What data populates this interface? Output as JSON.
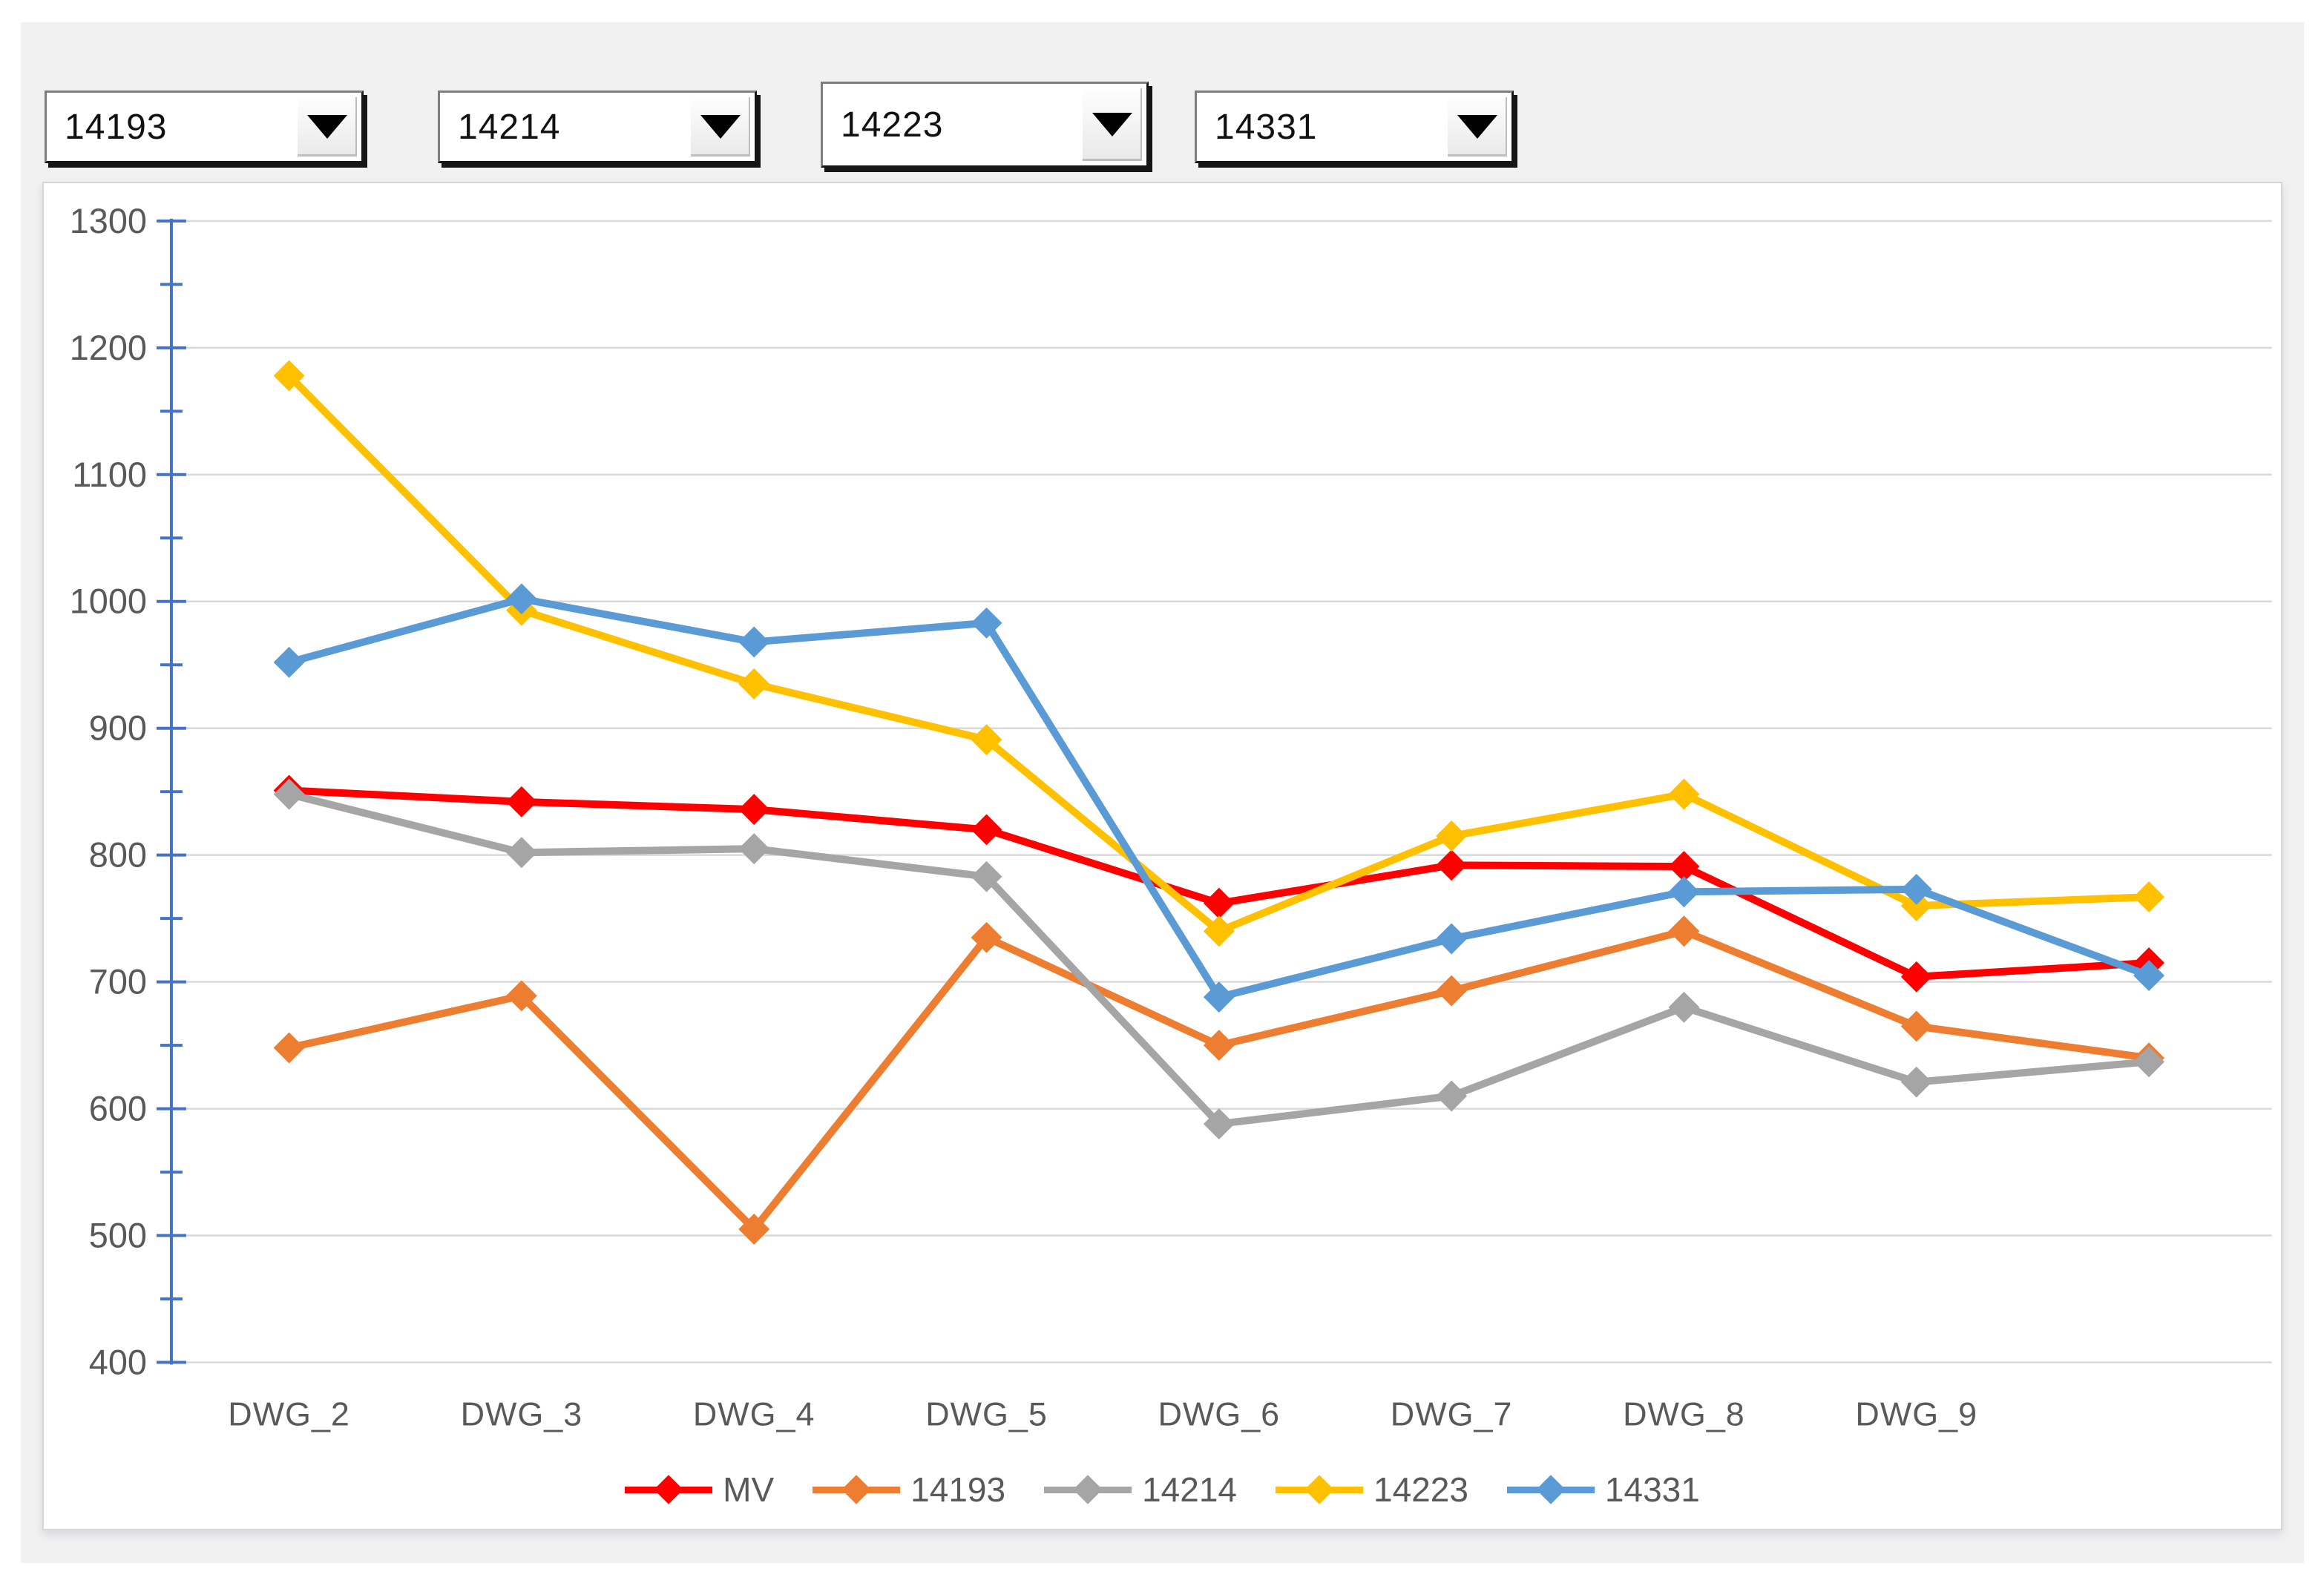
{
  "comboboxes": [
    {
      "value": "14193"
    },
    {
      "value": "14214"
    },
    {
      "value": "14223"
    },
    {
      "value": "14331"
    }
  ],
  "chart_data": {
    "type": "line",
    "categories": [
      "DWG_2",
      "DWG_3",
      "DWG_4",
      "DWG_5",
      "DWG_6",
      "DWG_7",
      "DWG_8",
      "DWG_9",
      ""
    ],
    "series": [
      {
        "name": "MV",
        "color": "#FF0000",
        "values": [
          851,
          842,
          836,
          820,
          762,
          792,
          791,
          704,
          715
        ]
      },
      {
        "name": "14193",
        "color": "#ED7D31",
        "values": [
          648,
          689,
          505,
          735,
          650,
          693,
          740,
          665,
          640
        ]
      },
      {
        "name": "14214",
        "color": "#A5A5A5",
        "values": [
          848,
          802,
          805,
          783,
          588,
          610,
          680,
          621,
          637
        ]
      },
      {
        "name": "14223",
        "color": "#FFC000",
        "values": [
          1178,
          993,
          935,
          891,
          740,
          815,
          848,
          760,
          767
        ]
      },
      {
        "name": "14331",
        "color": "#5B9BD5",
        "values": [
          952,
          1002,
          968,
          983,
          688,
          734,
          771,
          773,
          705
        ]
      }
    ],
    "title": "",
    "xlabel": "",
    "ylabel": "",
    "ylim": [
      400,
      1300
    ],
    "ytick_step": 100,
    "yticks": [
      400,
      500,
      600,
      700,
      800,
      900,
      1000,
      1100,
      1200,
      1300
    ],
    "grid": "horizontal",
    "legend_position": "bottom",
    "axis_color": "#4472C4",
    "grid_color": "#D9D9D9",
    "text_color": "#595959"
  }
}
